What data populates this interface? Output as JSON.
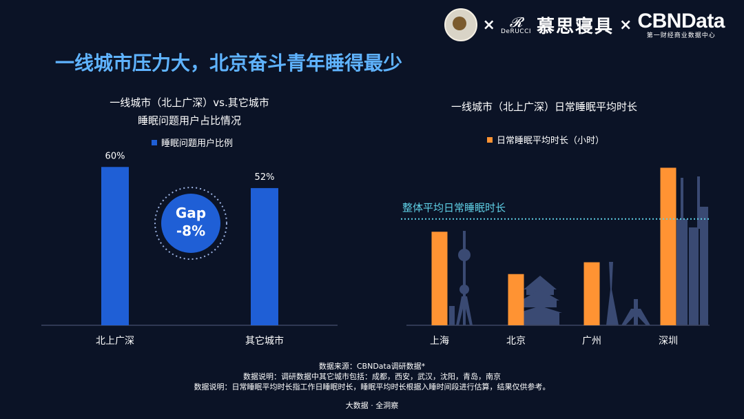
{
  "logos": {
    "separator": "×",
    "derucci_mark": "𝓡",
    "derucci_name": "DeRUCCI",
    "brand_cn": "慕思寝具",
    "cbndata": "CBNData",
    "cbndata_sub": "第一财经商业数据中心"
  },
  "headline": "一线城市压力大，北京奋斗青年睡得最少",
  "left_chart": {
    "title_line1": "一线城市（北上广深）vs.其它城市",
    "title_line2": "睡眠问题用户占比情况",
    "legend": "睡眠问题用户比例",
    "gap_line1": "Gap",
    "gap_line2": "-8%"
  },
  "right_chart": {
    "title": "一线城市（北上广深）日常睡眠平均时长",
    "legend": "日常睡眠平均时长（小时）",
    "reference_label": "整体平均日常睡眠时长"
  },
  "chart_data": [
    {
      "type": "bar",
      "title": "一线城市（北上广深）vs.其它城市 睡眠问题用户占比情况",
      "categories": [
        "北上广深",
        "其它城市"
      ],
      "series": [
        {
          "name": "睡眠问题用户比例",
          "values": [
            60,
            52
          ]
        }
      ],
      "value_labels": [
        "60%",
        "52%"
      ],
      "ylim": [
        0,
        70
      ],
      "color": "#1f5fd6",
      "annotation": "Gap -8%",
      "grid": false,
      "legend_position": "top"
    },
    {
      "type": "bar",
      "title": "一线城市（北上广深）日常睡眠平均时长",
      "categories": [
        "上海",
        "北京",
        "广州",
        "深圳"
      ],
      "series": [
        {
          "name": "日常睡眠平均时长（小时）",
          "values": [
            7.2,
            6.77,
            6.89,
            7.85
          ]
        }
      ],
      "reference_line": {
        "label": "整体平均日常睡眠时长",
        "value": 7.33
      },
      "ylim": [
        6.25,
        8
      ],
      "color": "#ff9333",
      "grid": false,
      "legend_position": "top"
    }
  ],
  "notes": {
    "source": "数据来源：CBNData调研数据*",
    "note1": "数据说明：调研数据中其它城市包括：成都，西安，武汉，沈阳，青岛，南京",
    "note2": "数据说明：日常睡眠平均时长指工作日睡眠时长，睡眠平均时长根据入睡时间段进行估算，结果仅供参考。"
  },
  "footer": "大数据 · 全洞察"
}
